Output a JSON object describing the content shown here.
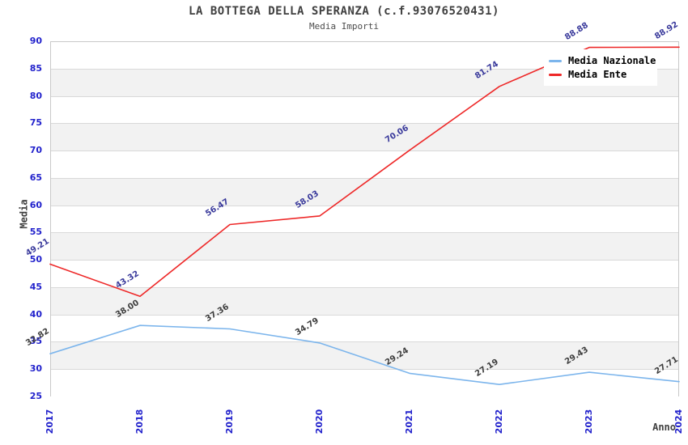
{
  "chart_data": {
    "type": "line",
    "title": "LA BOTTEGA DELLA SPERANZA (c.f.93076520431)",
    "subtitle": "Media Importi",
    "xlabel": "Anno",
    "ylabel": "Media",
    "categories": [
      "2017",
      "2018",
      "2019",
      "2020",
      "2021",
      "2022",
      "2023",
      "2024"
    ],
    "series": [
      {
        "name": "Media Nazionale",
        "color": "#7cb5ec",
        "label_color": "#3d3d3d",
        "values": [
          32.82,
          38.0,
          37.36,
          34.79,
          29.24,
          27.19,
          29.43,
          27.71
        ],
        "labels": [
          "32.82",
          "38.00",
          "37.36",
          "34.79",
          "29.24",
          "27.19",
          "29.43",
          "27.71"
        ]
      },
      {
        "name": "Media Ente",
        "color": "#ee2828",
        "label_color": "#39399b",
        "values": [
          49.21,
          43.32,
          56.47,
          58.03,
          70.06,
          81.74,
          88.88,
          88.92
        ],
        "labels": [
          "49.21",
          "43.32",
          "56.47",
          "58.03",
          "70.06",
          "81.74",
          "88.88",
          "88.92"
        ]
      }
    ],
    "ylim": [
      25,
      90
    ],
    "ytick_step": 5,
    "yticks": [
      25,
      30,
      35,
      40,
      45,
      50,
      55,
      60,
      65,
      70,
      75,
      80,
      85,
      90
    ],
    "legend_position": "top-right",
    "grid": "horizontal-alternating-bands",
    "colors": {
      "tick_label": "#2222cc",
      "title_text": "#404040",
      "band_gray": "#f2f2f2",
      "grid_line": "#d9d9d9",
      "plot_border": "#c9c9c9"
    }
  }
}
